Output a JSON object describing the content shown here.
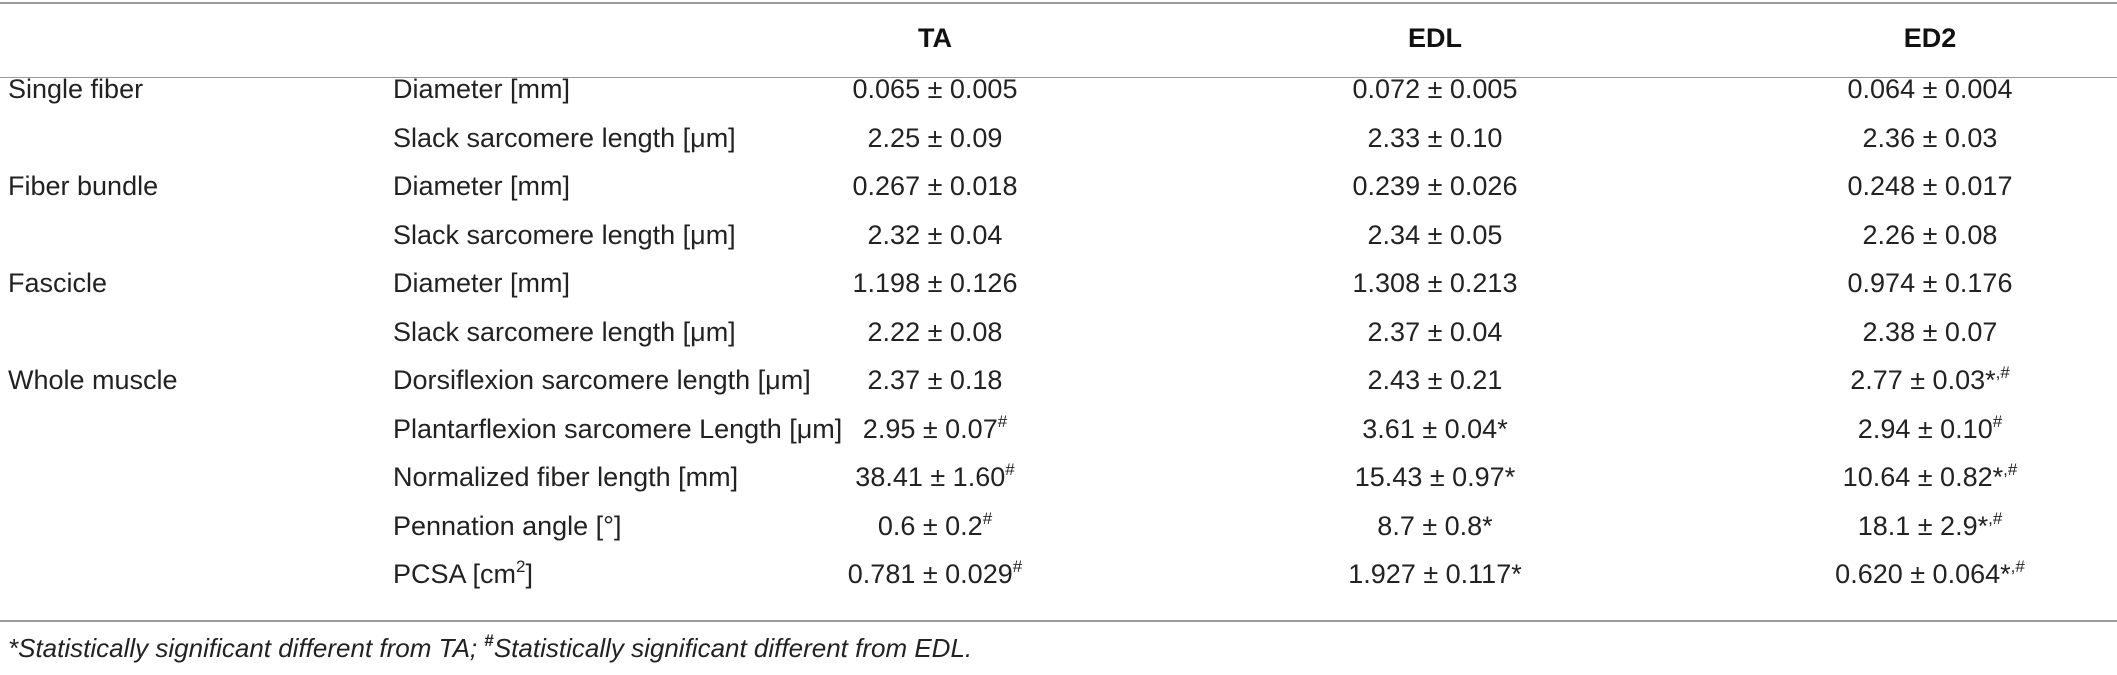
{
  "header": {
    "group_label": "",
    "measure_label": "",
    "col_ta": "TA",
    "col_edl": "EDL",
    "col_ed2": "ED2"
  },
  "rows": [
    {
      "group": "Single fiber",
      "measure": "Diameter [mm]",
      "measure_sup": "",
      "measure_tail": "",
      "ta": "0.065 ± 0.005",
      "ta_sup": "",
      "edl": "0.072 ± 0.005",
      "edl_sup": "",
      "ed2": "0.064 ± 0.004",
      "ed2_sup": ""
    },
    {
      "group": "",
      "measure": "Slack sarcomere length [μm]",
      "measure_sup": "",
      "measure_tail": "",
      "ta": "2.25 ± 0.09",
      "ta_sup": "",
      "edl": "2.33 ± 0.10",
      "edl_sup": "",
      "ed2": "2.36 ± 0.03",
      "ed2_sup": ""
    },
    {
      "group": "Fiber bundle",
      "measure": "Diameter [mm]",
      "measure_sup": "",
      "measure_tail": "",
      "ta": "0.267 ± 0.018",
      "ta_sup": "",
      "edl": "0.239 ± 0.026",
      "edl_sup": "",
      "ed2": "0.248 ± 0.017",
      "ed2_sup": ""
    },
    {
      "group": "",
      "measure": "Slack sarcomere length [μm]",
      "measure_sup": "",
      "measure_tail": "",
      "ta": "2.32 ± 0.04",
      "ta_sup": "",
      "edl": "2.34 ± 0.05",
      "edl_sup": "",
      "ed2": "2.26 ± 0.08",
      "ed2_sup": ""
    },
    {
      "group": "Fascicle",
      "measure": "Diameter [mm]",
      "measure_sup": "",
      "measure_tail": "",
      "ta": "1.198 ± 0.126",
      "ta_sup": "",
      "edl": "1.308 ± 0.213",
      "edl_sup": "",
      "ed2": "0.974 ± 0.176",
      "ed2_sup": ""
    },
    {
      "group": "",
      "measure": "Slack sarcomere length [μm]",
      "measure_sup": "",
      "measure_tail": "",
      "ta": "2.22 ± 0.08",
      "ta_sup": "",
      "edl": "2.37 ± 0.04",
      "edl_sup": "",
      "ed2": "2.38 ± 0.07",
      "ed2_sup": ""
    },
    {
      "group": "Whole muscle",
      "measure": "Dorsiflexion sarcomere length [μm]",
      "measure_sup": "",
      "measure_tail": "",
      "ta": "2.37 ± 0.18",
      "ta_sup": "",
      "edl": "2.43 ± 0.21",
      "edl_sup": "",
      "ed2": "2.77 ± 0.03*",
      "ed2_sup": ",#"
    },
    {
      "group": "",
      "measure": "Plantarflexion sarcomere Length [μm]",
      "measure_sup": "",
      "measure_tail": "",
      "ta": "2.95 ± 0.07",
      "ta_sup": "#",
      "edl": "3.61 ± 0.04*",
      "edl_sup": "",
      "ed2": "2.94 ± 0.10",
      "ed2_sup": "#"
    },
    {
      "group": "",
      "measure": "Normalized fiber length [mm]",
      "measure_sup": "",
      "measure_tail": "",
      "ta": "38.41 ± 1.60",
      "ta_sup": "#",
      "edl": "15.43 ± 0.97*",
      "edl_sup": "",
      "ed2": "10.64 ± 0.82*",
      "ed2_sup": ",#"
    },
    {
      "group": "",
      "measure": "Pennation angle [°]",
      "measure_sup": "",
      "measure_tail": "",
      "ta": "0.6 ± 0.2",
      "ta_sup": "#",
      "edl": "8.7 ± 0.8*",
      "edl_sup": "",
      "ed2": "18.1 ± 2.9*",
      "ed2_sup": ",#"
    },
    {
      "group": "",
      "measure": "PCSA [cm",
      "measure_sup": "2",
      "measure_tail": "]",
      "ta": "0.781 ± 0.029",
      "ta_sup": "#",
      "edl": "1.927 ± 0.117*",
      "edl_sup": "",
      "ed2": "0.620 ± 0.064*",
      "ed2_sup": ",#"
    }
  ],
  "footnote": {
    "part1": "*Statistically significant different from TA; ",
    "sup": "#",
    "part2": "Statistically significant different from EDL."
  }
}
